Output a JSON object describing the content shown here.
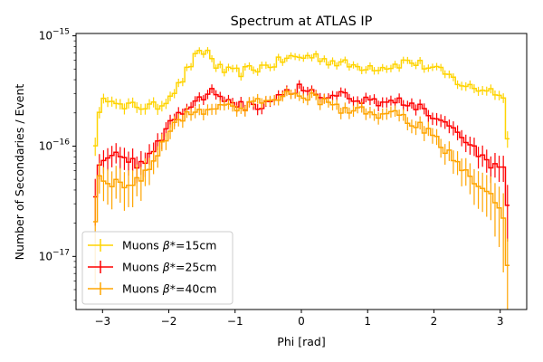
{
  "chart_data": {
    "type": "histogram-step-errorbar",
    "title": "Spectrum at ATLAS IP",
    "xlabel": "Phi [rad]",
    "ylabel": "Number of Secondaries / Event",
    "xlim": [
      -3.4,
      3.4
    ],
    "ylim": [
      3.3e-18,
      1.05e-15
    ],
    "yscale": "log",
    "grid": false,
    "legend_position": "lower-left",
    "x_ticks": [
      {
        "value": -3,
        "label": "−3"
      },
      {
        "value": -2,
        "label": "−2"
      },
      {
        "value": -1,
        "label": "−1"
      },
      {
        "value": 0,
        "label": "0"
      },
      {
        "value": 1,
        "label": "1"
      },
      {
        "value": 2,
        "label": "2"
      },
      {
        "value": 3,
        "label": "3"
      }
    ],
    "y_ticks": [
      {
        "value": 1e-17,
        "base": "10",
        "exp": "−17"
      },
      {
        "value": 1e-16,
        "base": "10",
        "exp": "−16"
      },
      {
        "value": 1e-15,
        "base": "10",
        "exp": "−15"
      }
    ],
    "bins": {
      "start": -3.1416,
      "end": 3.1416,
      "count": 100
    },
    "series": [
      {
        "name": "Muons β*=15cm",
        "label_prefix": "Muons ",
        "label_math": "β",
        "label_suffix": "*=15cm",
        "color": "#FFD400",
        "anchors": [
          [
            -3.14,
            7.5e-17
          ],
          [
            -3.08,
            1.6e-16
          ],
          [
            -3.0,
            2.4e-16
          ],
          [
            -2.9,
            2.9e-16
          ],
          [
            -2.8,
            2.7e-16
          ],
          [
            -2.7,
            2.1e-16
          ],
          [
            -2.55,
            2.35e-16
          ],
          [
            -2.4,
            2.3e-16
          ],
          [
            -2.25,
            2.25e-16
          ],
          [
            -2.1,
            2.4e-16
          ],
          [
            -2.0,
            2.9e-16
          ],
          [
            -1.85,
            3.5e-16
          ],
          [
            -1.75,
            4.5e-16
          ],
          [
            -1.62,
            6.2e-16
          ],
          [
            -1.5,
            7e-16
          ],
          [
            -1.42,
            7.3e-16
          ],
          [
            -1.3,
            5.5e-16
          ],
          [
            -1.2,
            4.9e-16
          ],
          [
            -1.05,
            4.6e-16
          ],
          [
            -0.9,
            4.7e-16
          ],
          [
            -0.75,
            5e-16
          ],
          [
            -0.6,
            5.2e-16
          ],
          [
            -0.4,
            5.6e-16
          ],
          [
            -0.2,
            6.3e-16
          ],
          [
            0.0,
            6.4e-16
          ],
          [
            0.2,
            6.6e-16
          ],
          [
            0.4,
            6e-16
          ],
          [
            0.6,
            5.6e-16
          ],
          [
            0.8,
            5.3e-16
          ],
          [
            1.0,
            5.3e-16
          ],
          [
            1.2,
            5.2e-16
          ],
          [
            1.4,
            5.4e-16
          ],
          [
            1.6,
            5.9e-16
          ],
          [
            1.8,
            5.5e-16
          ],
          [
            2.0,
            5e-16
          ],
          [
            2.2,
            4.4e-16
          ],
          [
            2.4,
            3.7e-16
          ],
          [
            2.6,
            3.3e-16
          ],
          [
            2.8,
            3.3e-16
          ],
          [
            2.95,
            3.1e-16
          ],
          [
            3.05,
            2.6e-16
          ],
          [
            3.14,
            9e-17
          ]
        ]
      },
      {
        "name": "Muons β*=25cm",
        "label_prefix": "Muons ",
        "label_math": "β",
        "label_suffix": "*=25cm",
        "color": "#FF0000",
        "anchors": [
          [
            -3.14,
            2.2e-17
          ],
          [
            -3.08,
            6.5e-17
          ],
          [
            -2.95,
            8.5e-17
          ],
          [
            -2.8,
            8e-17
          ],
          [
            -2.6,
            7e-17
          ],
          [
            -2.4,
            7e-17
          ],
          [
            -2.2,
            1e-16
          ],
          [
            -2.05,
            1.4e-16
          ],
          [
            -1.9,
            1.8e-16
          ],
          [
            -1.75,
            2.2e-16
          ],
          [
            -1.6,
            2.5e-16
          ],
          [
            -1.45,
            2.9e-16
          ],
          [
            -1.3,
            3.1e-16
          ],
          [
            -1.15,
            2.8e-16
          ],
          [
            -1.0,
            2.5e-16
          ],
          [
            -0.8,
            2.3e-16
          ],
          [
            -0.6,
            2.4e-16
          ],
          [
            -0.4,
            2.8e-16
          ],
          [
            -0.2,
            3.2e-16
          ],
          [
            0.0,
            3.4e-16
          ],
          [
            0.2,
            3.1e-16
          ],
          [
            0.4,
            2.8e-16
          ],
          [
            0.6,
            2.9e-16
          ],
          [
            0.8,
            2.8e-16
          ],
          [
            1.0,
            2.6e-16
          ],
          [
            1.2,
            2.5e-16
          ],
          [
            1.4,
            2.6e-16
          ],
          [
            1.6,
            2.4e-16
          ],
          [
            1.8,
            2.2e-16
          ],
          [
            2.0,
            1.9e-16
          ],
          [
            2.2,
            1.5e-16
          ],
          [
            2.4,
            1.15e-16
          ],
          [
            2.6,
            9.5e-17
          ],
          [
            2.8,
            7e-17
          ],
          [
            2.95,
            6.5e-17
          ],
          [
            3.05,
            6e-17
          ],
          [
            3.14,
            1.8e-17
          ]
        ]
      },
      {
        "name": "Muons β*=40cm",
        "label_prefix": "Muons ",
        "label_math": "β",
        "label_suffix": "*=40cm",
        "color": "#FFA500",
        "anchors": [
          [
            -3.14,
            1.5e-17
          ],
          [
            -3.05,
            5e-17
          ],
          [
            -2.9,
            4.8e-17
          ],
          [
            -2.75,
            4.5e-17
          ],
          [
            -2.55,
            4.7e-17
          ],
          [
            -2.35,
            5.5e-17
          ],
          [
            -2.2,
            8e-17
          ],
          [
            -2.05,
            1.2e-16
          ],
          [
            -1.9,
            1.6e-16
          ],
          [
            -1.75,
            1.9e-16
          ],
          [
            -1.6,
            2.1e-16
          ],
          [
            -1.4,
            2.2e-16
          ],
          [
            -1.2,
            2.3e-16
          ],
          [
            -1.0,
            2.2e-16
          ],
          [
            -0.8,
            2.3e-16
          ],
          [
            -0.6,
            2.5e-16
          ],
          [
            -0.4,
            2.8e-16
          ],
          [
            -0.2,
            3e-16
          ],
          [
            0.0,
            3e-16
          ],
          [
            0.2,
            2.7e-16
          ],
          [
            0.4,
            2.4e-16
          ],
          [
            0.6,
            2.2e-16
          ],
          [
            0.8,
            2.1e-16
          ],
          [
            1.0,
            2e-16
          ],
          [
            1.2,
            1.95e-16
          ],
          [
            1.4,
            1.9e-16
          ],
          [
            1.6,
            1.75e-16
          ],
          [
            1.8,
            1.5e-16
          ],
          [
            2.0,
            1.2e-16
          ],
          [
            2.2,
            9e-17
          ],
          [
            2.4,
            6.5e-17
          ],
          [
            2.6,
            5e-17
          ],
          [
            2.8,
            4e-17
          ],
          [
            2.95,
            3e-17
          ],
          [
            3.05,
            2e-17
          ],
          [
            3.14,
            5e-18
          ]
        ]
      }
    ]
  }
}
